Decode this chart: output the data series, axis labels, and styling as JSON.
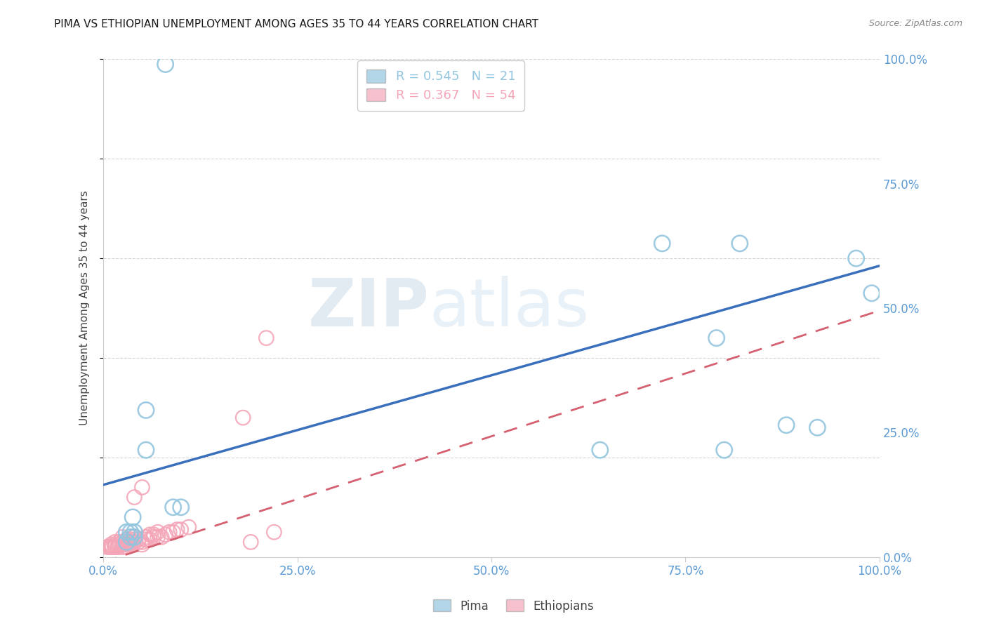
{
  "title": "PIMA VS ETHIOPIAN UNEMPLOYMENT AMONG AGES 35 TO 44 YEARS CORRELATION CHART",
  "source": "Source: ZipAtlas.com",
  "ylabel": "Unemployment Among Ages 35 to 44 years",
  "xlim": [
    0,
    1
  ],
  "ylim": [
    0,
    1
  ],
  "xticks": [
    0,
    0.25,
    0.5,
    0.75,
    1.0
  ],
  "yticks": [
    0,
    0.25,
    0.5,
    0.75,
    1.0
  ],
  "xtick_labels": [
    "0.0%",
    "25.0%",
    "50.0%",
    "75.0%",
    "100.0%"
  ],
  "ytick_labels": [
    "0.0%",
    "25.0%",
    "50.0%",
    "75.0%",
    "100.0%"
  ],
  "pima_color": "#92c5de",
  "ethiopian_color": "#f4a6b8",
  "pima_line_color": "#3a6fbe",
  "ethiopian_line_color": "#d46070",
  "pima_R": 0.545,
  "pima_N": 21,
  "ethiopian_R": 0.367,
  "ethiopian_N": 54,
  "legend_label_pima": "Pima",
  "legend_label_ethiopians": "Ethiopians",
  "watermark_zip": "ZIP",
  "watermark_atlas": "atlas",
  "pima_x": [
    0.055,
    0.055,
    0.03,
    0.035,
    0.04,
    0.04,
    0.03,
    0.035,
    0.038,
    0.09,
    0.08,
    0.1,
    0.64,
    0.72,
    0.8,
    0.82,
    0.79,
    0.88,
    0.92,
    0.97,
    0.99
  ],
  "pima_y": [
    0.295,
    0.215,
    0.03,
    0.04,
    0.04,
    0.05,
    0.05,
    0.05,
    0.08,
    0.1,
    0.99,
    0.1,
    0.215,
    0.63,
    0.215,
    0.63,
    0.44,
    0.265,
    0.26,
    0.6,
    0.53
  ],
  "ethiopian_x": [
    0.005,
    0.008,
    0.01,
    0.01,
    0.01,
    0.012,
    0.015,
    0.015,
    0.015,
    0.015,
    0.018,
    0.02,
    0.02,
    0.02,
    0.025,
    0.025,
    0.025,
    0.025,
    0.03,
    0.03,
    0.03,
    0.035,
    0.035,
    0.035,
    0.038,
    0.04,
    0.04,
    0.04,
    0.04,
    0.04,
    0.045,
    0.045,
    0.05,
    0.05,
    0.05,
    0.055,
    0.055,
    0.06,
    0.06,
    0.065,
    0.065,
    0.07,
    0.07,
    0.075,
    0.08,
    0.085,
    0.09,
    0.095,
    0.1,
    0.11,
    0.18,
    0.19,
    0.21,
    0.22
  ],
  "ethiopian_y": [
    0.02,
    0.02,
    0.02,
    0.02,
    0.025,
    0.02,
    0.02,
    0.02,
    0.025,
    0.03,
    0.02,
    0.02,
    0.025,
    0.03,
    0.02,
    0.025,
    0.03,
    0.04,
    0.02,
    0.025,
    0.035,
    0.025,
    0.03,
    0.035,
    0.025,
    0.03,
    0.03,
    0.035,
    0.04,
    0.12,
    0.03,
    0.035,
    0.025,
    0.03,
    0.14,
    0.035,
    0.04,
    0.035,
    0.045,
    0.04,
    0.045,
    0.04,
    0.05,
    0.04,
    0.045,
    0.05,
    0.05,
    0.055,
    0.055,
    0.06,
    0.28,
    0.03,
    0.44,
    0.05
  ],
  "pima_line": [
    0.0,
    0.145,
    1.0,
    0.585
  ],
  "ethiopian_line": [
    0.0,
    -0.01,
    1.0,
    0.495
  ],
  "background_color": "#ffffff",
  "grid_color": "#d0d0d0",
  "title_fontsize": 11,
  "tick_label_color": "#5b9bd5",
  "tick_label_fontsize": 12
}
